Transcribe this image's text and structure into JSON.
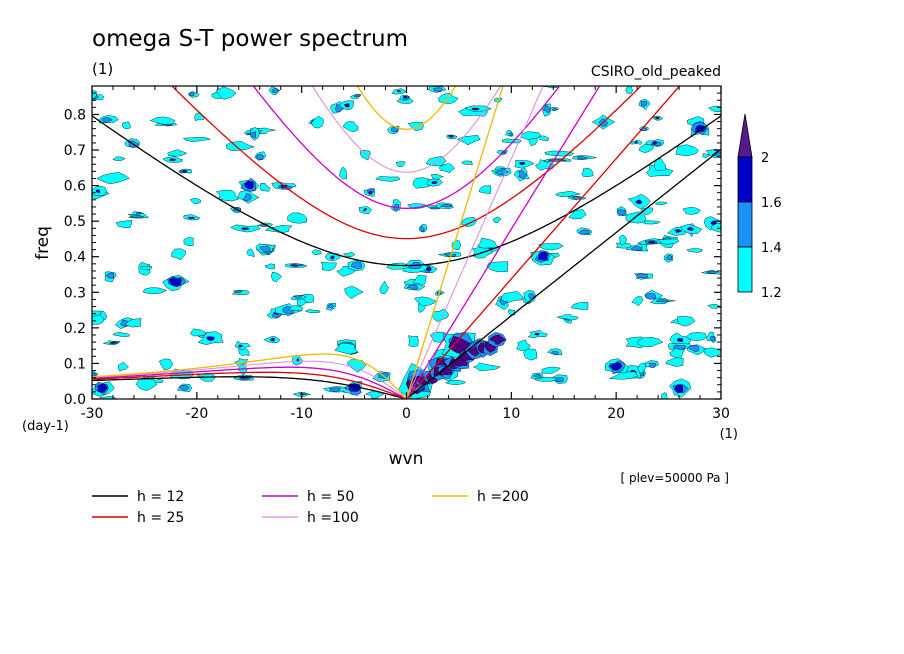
{
  "chart_data": {
    "type": "heatmap",
    "title": "omega S-T power spectrum",
    "title_units": "(1)",
    "model": "CSIRO_old_peaked",
    "xlabel": "wvn",
    "ylabel": "freq",
    "xunits": "(1)",
    "yunits": "(day-1)",
    "xlim": [
      -30,
      30
    ],
    "ylim": [
      0,
      0.88
    ],
    "xticks": [
      -30,
      -20,
      -10,
      0,
      10,
      20,
      30
    ],
    "xtick_labels": [
      "-30",
      "-20",
      "-10",
      "0",
      "10",
      "20",
      "30"
    ],
    "yticks": [
      0.0,
      0.1,
      0.2,
      0.3,
      0.4,
      0.5,
      0.6,
      0.7,
      0.8
    ],
    "ytick_labels": [
      "0.0",
      "0.1",
      "0.2",
      "0.3",
      "0.4",
      "0.5",
      "0.6",
      "0.7",
      "0.8"
    ],
    "level_note": "[ plev=50000 Pa ]",
    "colorbar": {
      "levels": [
        {
          "label": "1.2",
          "color": "#00ffff"
        },
        {
          "label": "1.4",
          "color": "#1e90ff"
        },
        {
          "label": "1.6",
          "color": "#0000cd"
        },
        {
          "label": "2",
          "color": "#4b0082"
        }
      ],
      "top_color": "#551a8b"
    },
    "dispersion_series": [
      {
        "name": "h = 12",
        "h": 12,
        "color": "#000000",
        "width": 1.3
      },
      {
        "name": "h = 25",
        "h": 25,
        "color": "#dd0000",
        "width": 1.3
      },
      {
        "name": "h = 50",
        "h": 50,
        "color": "#cc00cc",
        "width": 1.3
      },
      {
        "name": "h =100",
        "h": 100,
        "color": "#dd88dd",
        "width": 1
      },
      {
        "name": "h =200",
        "h": 200,
        "color": "#eebb00",
        "width": 1.3
      }
    ],
    "spectral_peaks": [
      {
        "wvn": 3.5,
        "freq": 0.09,
        "level": 2.0
      },
      {
        "wvn": 5,
        "freq": 0.155,
        "level": 2.0
      },
      {
        "wvn": 1,
        "freq": 0.045,
        "level": 2.0
      },
      {
        "wvn": -29,
        "freq": 0.03,
        "level": 1.6
      },
      {
        "wvn": -5,
        "freq": 0.03,
        "level": 1.6
      },
      {
        "wvn": 26,
        "freq": 0.03,
        "level": 1.6
      },
      {
        "wvn": 7,
        "freq": 0.15,
        "level": 1.6
      },
      {
        "wvn": 20,
        "freq": 0.09,
        "level": 1.6
      },
      {
        "wvn": -15,
        "freq": 0.6,
        "level": 1.6
      },
      {
        "wvn": 13,
        "freq": 0.4,
        "level": 1.6
      },
      {
        "wvn": -22,
        "freq": 0.33,
        "level": 1.6
      },
      {
        "wvn": 28,
        "freq": 0.76,
        "level": 1.6
      }
    ]
  }
}
